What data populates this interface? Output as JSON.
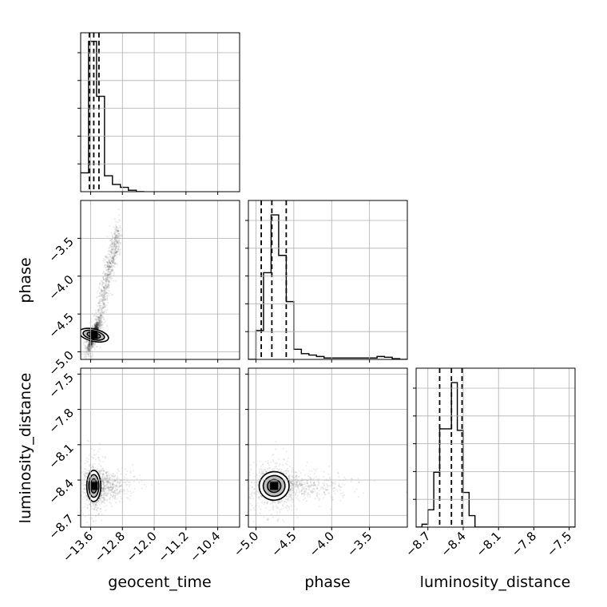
{
  "chart_data": {
    "type": "corner",
    "parameters": [
      "geocent_time",
      "phase",
      "luminosity_distance"
    ],
    "axis_labels": {
      "x": [
        "geocent_time",
        "phase",
        "luminosity_distance"
      ],
      "y": [
        "",
        "phase",
        "luminosity_distance"
      ]
    },
    "ranges": {
      "geocent_time": [
        -13.85,
        -9.85
      ],
      "phase": [
        -5.1,
        -3.0
      ],
      "luminosity_distance": [
        -8.8,
        -7.45
      ]
    },
    "ticks": {
      "geocent_time": {
        "values": [
          -13.6,
          -12.8,
          -12.0,
          -11.2,
          -10.4
        ],
        "labels": [
          "−13.6",
          "−12.8",
          "−12.0",
          "−11.2",
          "−10.4"
        ]
      },
      "phase": {
        "values": [
          -5.0,
          -4.5,
          -4.0,
          -3.5
        ],
        "labels": [
          "−5.0",
          "−4.5",
          "−4.0",
          "−3.5"
        ]
      },
      "luminosity_distance": {
        "values": [
          -8.7,
          -8.4,
          -8.1,
          -7.8,
          -7.5
        ],
        "labels": [
          "−8.7",
          "−8.4",
          "−8.1",
          "−7.8",
          "−7.5"
        ]
      }
    },
    "quantiles": {
      "geocent_time": [
        -13.63,
        -13.52,
        -13.39
      ],
      "phase": [
        -4.93,
        -4.79,
        -4.6
      ],
      "luminosity_distance": [
        -8.6,
        -8.5,
        -8.41
      ]
    },
    "histograms": {
      "geocent_time": {
        "bin_edges": [
          -13.85,
          -13.65,
          -13.45,
          -13.25,
          -13.05,
          -12.85,
          -12.65,
          -12.45,
          -12.25
        ],
        "counts": [
          0.13,
          1.04,
          0.66,
          0.11,
          0.05,
          0.03,
          0.01,
          0.0
        ]
      },
      "phase": {
        "bin_edges": [
          -5.1,
          -5.0,
          -4.9,
          -4.8,
          -4.7,
          -4.6,
          -4.5,
          -4.4,
          -4.3,
          -4.2,
          -4.1,
          -4.0,
          -3.9,
          -3.8,
          -3.7,
          -3.6,
          -3.5,
          -3.4,
          -3.3,
          -3.2,
          -3.1,
          -3.0
        ],
        "counts": [
          0.0,
          0.2,
          0.6,
          1.0,
          0.72,
          0.4,
          0.07,
          0.04,
          0.03,
          0.02,
          0.01,
          0.01,
          0.01,
          0.01,
          0.01,
          0.01,
          0.01,
          0.02,
          0.015,
          0.005,
          0.0
        ]
      },
      "luminosity_distance": {
        "bin_edges": [
          -8.8,
          -8.75,
          -8.7,
          -8.65,
          -8.6,
          -8.55,
          -8.5,
          -8.45,
          -8.4,
          -8.35,
          -8.3,
          -8.25,
          -7.45
        ],
        "counts": [
          0.0,
          0.02,
          0.12,
          0.38,
          0.68,
          0.68,
          1.0,
          0.67,
          0.24,
          0.08,
          0.0,
          0.0
        ]
      }
    },
    "modes_2d": {
      "geocent_time|phase": {
        "center": [
          -13.52,
          -4.78
        ],
        "sd": [
          0.07,
          0.09
        ],
        "rho": 0.85
      },
      "geocent_time|luminosity_distance": {
        "center": [
          -13.52,
          -8.45
        ],
        "sd": [
          0.08,
          0.06
        ],
        "rho": 0.0
      },
      "phase|luminosity_distance": {
        "center": [
          -4.76,
          -8.45
        ],
        "sd": [
          0.09,
          0.055
        ],
        "rho": 0.1
      }
    },
    "tail_2d": {
      "geocent_time|phase": {
        "from": [
          -13.4,
          -4.5
        ],
        "to": [
          -12.9,
          -3.4
        ]
      }
    },
    "grid": true,
    "colors": {
      "contour": "#000000",
      "scatter": "#000000",
      "grid": "#b0b0b0",
      "quantile_line": "#000000"
    }
  }
}
